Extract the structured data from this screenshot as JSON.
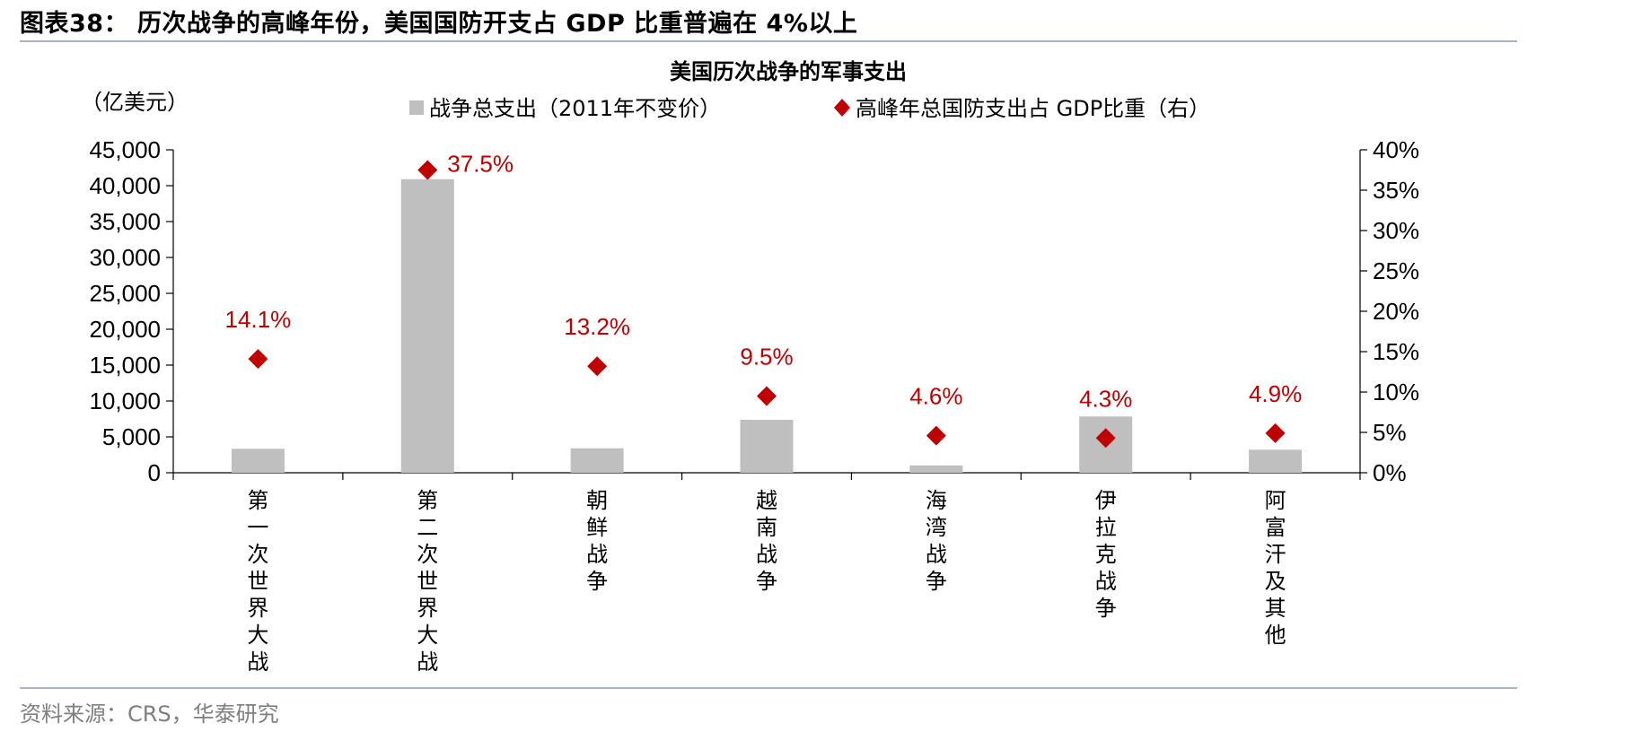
{
  "figure": {
    "title": "图表38： 历次战争的高峰年份，美国国防开支占 GDP 比重普遍在 4%以上",
    "source": "资料来源：CRS，华泰研究"
  },
  "chart_data": {
    "type": "bar",
    "title": "美国历次战争的军事支出",
    "unit_label": "（亿美元）",
    "categories": [
      "第一次世界大战",
      "第二次世界大战",
      "朝鲜战争",
      "越南战争",
      "海湾战争",
      "伊拉克战争",
      "阿富汗及其他"
    ],
    "series": [
      {
        "name": "战争总支出（2011年不变价）",
        "type": "bar",
        "axis": "left",
        "color": "#bfbfbf",
        "values": [
          3340,
          40910,
          3410,
          7380,
          1020,
          7840,
          3210
        ]
      },
      {
        "name": "高峰年总国防支出占 GDP比重（右）",
        "type": "scatter",
        "marker": "diamond",
        "axis": "right",
        "color": "#c00000",
        "values": [
          14.1,
          37.5,
          13.2,
          9.5,
          4.6,
          4.3,
          4.9
        ],
        "labels": [
          "14.1%",
          "37.5%",
          "13.2%",
          "9.5%",
          "4.6%",
          "4.3%",
          "4.9%"
        ]
      }
    ],
    "y_left": {
      "min": 0,
      "max": 45000,
      "ticks": [
        0,
        5000,
        10000,
        15000,
        20000,
        25000,
        30000,
        35000,
        40000,
        45000
      ],
      "tick_labels": [
        "0",
        "5,000",
        "10,000",
        "15,000",
        "20,000",
        "25,000",
        "30,000",
        "35,000",
        "40,000",
        "45,000"
      ]
    },
    "y_right": {
      "min": 0,
      "max": 40,
      "ticks": [
        0,
        5,
        10,
        15,
        20,
        25,
        30,
        35,
        40
      ],
      "tick_labels": [
        "0%",
        "5%",
        "10%",
        "15%",
        "20%",
        "25%",
        "30%",
        "35%",
        "40%"
      ]
    },
    "grid": false,
    "legend_position": "top"
  }
}
